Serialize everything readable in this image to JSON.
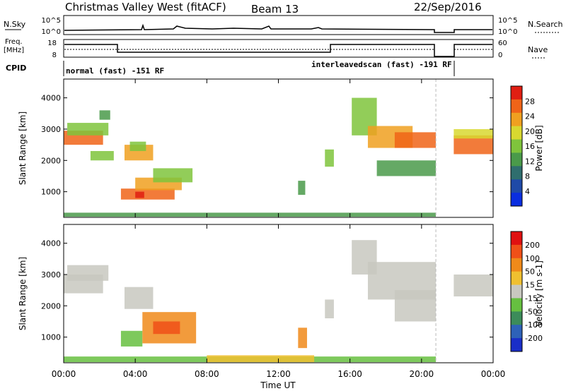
{
  "header": {
    "title": "Christmas Valley West (fitACF)",
    "beam": "Beam 13",
    "date": "22/Sep/2016"
  },
  "top_panels": {
    "nsky_label": "N.Sky",
    "nsky_ticks": [
      "10^5",
      "10^0"
    ],
    "nsearch_label": "N.Search",
    "nsearch_ticks": [
      "10^5",
      "10^0"
    ],
    "freq_label_1": "Freq.",
    "freq_label_2": "[MHz]",
    "freq_ticks": [
      "18",
      "8"
    ],
    "nave_label": "Nave",
    "nave_ticks": [
      "60",
      "0"
    ],
    "cpid_label": "CPID",
    "cpid_segments": [
      {
        "text": "normal (fast) -151 RF",
        "start_h": 0
      },
      {
        "text": "interleavedscan (fast) -191 RF",
        "start_h": 15
      }
    ]
  },
  "chart_data": [
    {
      "type": "heatmap",
      "name": "power",
      "ylabel": "Slant Range [km]",
      "ylim": [
        180,
        4600
      ],
      "yticks": [
        1000,
        2000,
        3000,
        4000
      ],
      "xlim": [
        0,
        24
      ],
      "xticks": [
        "00:00",
        "04:00",
        "08:00",
        "12:00",
        "16:00",
        "20:00",
        "00:00"
      ],
      "colorbar_label": "Power [dB]",
      "colorbar_ticks": [
        "28",
        "24",
        "20",
        "16",
        "12",
        "8",
        "4"
      ],
      "colors": [
        "#0a2ee0",
        "#1f4aa8",
        "#2f6e6e",
        "#4a9a4a",
        "#7fc43c",
        "#d8d830",
        "#f0a020",
        "#f06418",
        "#e01e12"
      ]
    },
    {
      "type": "heatmap",
      "name": "velocity",
      "ylabel": "Slant Range [km]",
      "ylim": [
        180,
        4600
      ],
      "yticks": [
        1000,
        2000,
        3000,
        4000
      ],
      "xlim": [
        0,
        24
      ],
      "xticks": [
        "00:00",
        "04:00",
        "08:00",
        "12:00",
        "16:00",
        "20:00",
        "00:00"
      ],
      "xlabel": "Time UT",
      "colorbar_label": "Velocity [m s-1]",
      "colorbar_ticks": [
        "200",
        "100",
        "50",
        "15",
        "-15",
        "-50",
        "-100",
        "-200"
      ],
      "colors": [
        "#1a2ec8",
        "#2e62b8",
        "#3c8c5a",
        "#66c040",
        "#c8c8c0",
        "#f0c030",
        "#f08a1a",
        "#f05018",
        "#e01010"
      ]
    }
  ]
}
